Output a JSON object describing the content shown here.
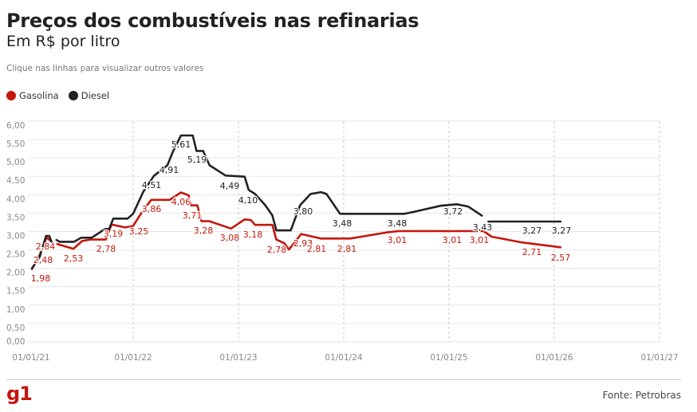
{
  "header": {
    "title": "Preços dos combustíveis nas refinarias",
    "subtitle": "Em R$ por litro",
    "hint": "Clique nas linhas para visualizar outros valores"
  },
  "footer": {
    "logo": "g1",
    "source": "Fonte: Petrobras"
  },
  "chart_data": {
    "type": "line",
    "title": "Preços dos combustíveis nas refinarias",
    "ylabel": "",
    "xlabel": "",
    "ylim": [
      0,
      6
    ],
    "xlim": [
      "2021-01-01",
      "2027-01-01"
    ],
    "yticks": [
      "0,00",
      "0,50",
      "1,00",
      "1,50",
      "2,00",
      "2,50",
      "3,00",
      "3,50",
      "4,00",
      "4,50",
      "5,00",
      "5,50",
      "6,00"
    ],
    "xticks": [
      "01/01/21",
      "01/01/22",
      "01/01/23",
      "01/01/24",
      "01/01/25",
      "01/01/26",
      "01/01/27"
    ],
    "grid": true,
    "legend_position": "top-left",
    "series": [
      {
        "name": "Gasolina",
        "color": "#c4170c",
        "points": [
          [
            "2021-01-15",
            1.98
          ],
          [
            "2021-02-11",
            2.36
          ],
          [
            "2021-03-07",
            2.84
          ],
          [
            "2021-03-24",
            2.72
          ],
          null,
          [
            "2021-04-13",
            2.66
          ],
          [
            "2021-06-08",
            2.53
          ],
          [
            "2021-07-08",
            2.74
          ],
          [
            "2021-08-05",
            2.78
          ],
          [
            "2021-09-28",
            2.78
          ],
          [
            "2021-10-18",
            3.19
          ],
          [
            "2021-12-04",
            3.11
          ],
          [
            "2022-01-01",
            3.15
          ],
          [
            "2022-02-06",
            3.59
          ],
          [
            "2022-03-05",
            3.86
          ],
          [
            "2022-05-08",
            3.86
          ],
          [
            "2022-06-16",
            4.06
          ],
          [
            "2022-07-13",
            3.98
          ],
          [
            "2022-07-21",
            3.71
          ],
          [
            "2022-08-12",
            3.71
          ],
          [
            "2022-08-26",
            3.28
          ],
          [
            "2022-09-23",
            3.28
          ],
          [
            "2022-12-07",
            3.08
          ],
          [
            "2023-01-23",
            3.33
          ],
          [
            "2023-02-14",
            3.31
          ],
          [
            "2023-02-28",
            3.18
          ],
          [
            "2023-04-29",
            3.18
          ],
          [
            "2023-05-13",
            2.78
          ],
          [
            "2023-06-10",
            2.68
          ],
          [
            "2023-06-26",
            2.51
          ],
          [
            "2023-08-07",
            2.93
          ],
          [
            "2023-10-15",
            2.81
          ],
          [
            "2023-12-01",
            2.81
          ],
          [
            "2024-01-25",
            2.81
          ],
          [
            "2024-06-04",
            2.98
          ],
          [
            "2024-07-10",
            3.01
          ],
          [
            "2025-05-01",
            3.01
          ],
          [
            "2025-05-29",
            2.86
          ],
          [
            "2025-09-06",
            2.71
          ],
          [
            "2026-01-23",
            2.57
          ]
        ]
      },
      {
        "name": "Diesel",
        "color": "#222222",
        "points": [
          [
            "2021-01-15",
            2.0
          ],
          [
            "2021-02-11",
            2.31
          ],
          [
            "2021-03-05",
            2.88
          ],
          [
            "2021-03-16",
            2.88
          ],
          [
            "2021-03-24",
            2.72
          ],
          null,
          [
            "2021-04-10",
            2.77
          ],
          [
            "2021-04-21",
            2.72
          ],
          [
            "2021-06-10",
            2.72
          ],
          [
            "2021-07-05",
            2.83
          ],
          [
            "2021-08-10",
            2.83
          ],
          [
            "2021-09-26",
            3.07
          ],
          [
            "2021-10-10",
            3.07
          ],
          [
            "2021-10-24",
            3.35
          ],
          [
            "2021-12-13",
            3.35
          ],
          [
            "2022-01-01",
            3.48
          ],
          [
            "2022-02-06",
            4.09
          ],
          [
            "2022-03-14",
            4.51
          ],
          [
            "2022-04-30",
            4.8
          ],
          [
            "2022-05-19",
            5.17
          ],
          [
            "2022-06-16",
            5.61
          ],
          [
            "2022-07-27",
            5.61
          ],
          [
            "2022-08-09",
            5.19
          ],
          [
            "2022-09-01",
            5.19
          ],
          [
            "2022-09-23",
            4.8
          ],
          [
            "2022-11-18",
            4.52
          ],
          [
            "2023-01-23",
            4.49
          ],
          [
            "2023-02-06",
            4.13
          ],
          [
            "2023-02-28",
            4.02
          ],
          [
            "2023-04-04",
            3.72
          ],
          [
            "2023-04-29",
            3.44
          ],
          [
            "2023-05-13",
            3.03
          ],
          [
            "2023-07-02",
            3.03
          ],
          [
            "2023-08-04",
            3.72
          ],
          [
            "2023-09-09",
            4.02
          ],
          [
            "2023-10-15",
            4.07
          ],
          [
            "2023-11-03",
            4.02
          ],
          [
            "2023-12-20",
            3.48
          ],
          [
            "2024-07-30",
            3.48
          ],
          [
            "2024-09-04",
            3.54
          ],
          [
            "2024-12-03",
            3.7
          ],
          [
            "2025-01-28",
            3.74
          ],
          [
            "2025-03-08",
            3.68
          ],
          [
            "2025-04-25",
            3.43
          ],
          null,
          [
            "2025-05-18",
            3.27
          ],
          [
            "2026-01-23",
            3.27
          ]
        ]
      }
    ],
    "data_labels": {
      "Gasolina": [
        "1,98",
        "2,48",
        "2,84",
        "2,53",
        "2,78",
        "3,19",
        "3,25",
        "3,86",
        "4,06",
        "3,71",
        "3,28",
        "3,08",
        "3,18",
        "2,78",
        "2,93",
        "2,81",
        "2,81",
        "3,01",
        "3,01",
        "3,01",
        "2,71",
        "2,57"
      ],
      "Diesel": [
        "4,51",
        "4,91",
        "5,61",
        "5,19",
        "4,49",
        "4,10",
        "3,80",
        "3,48",
        "3,48",
        "3,72",
        "3,43",
        "3,27",
        "3,27"
      ]
    }
  }
}
